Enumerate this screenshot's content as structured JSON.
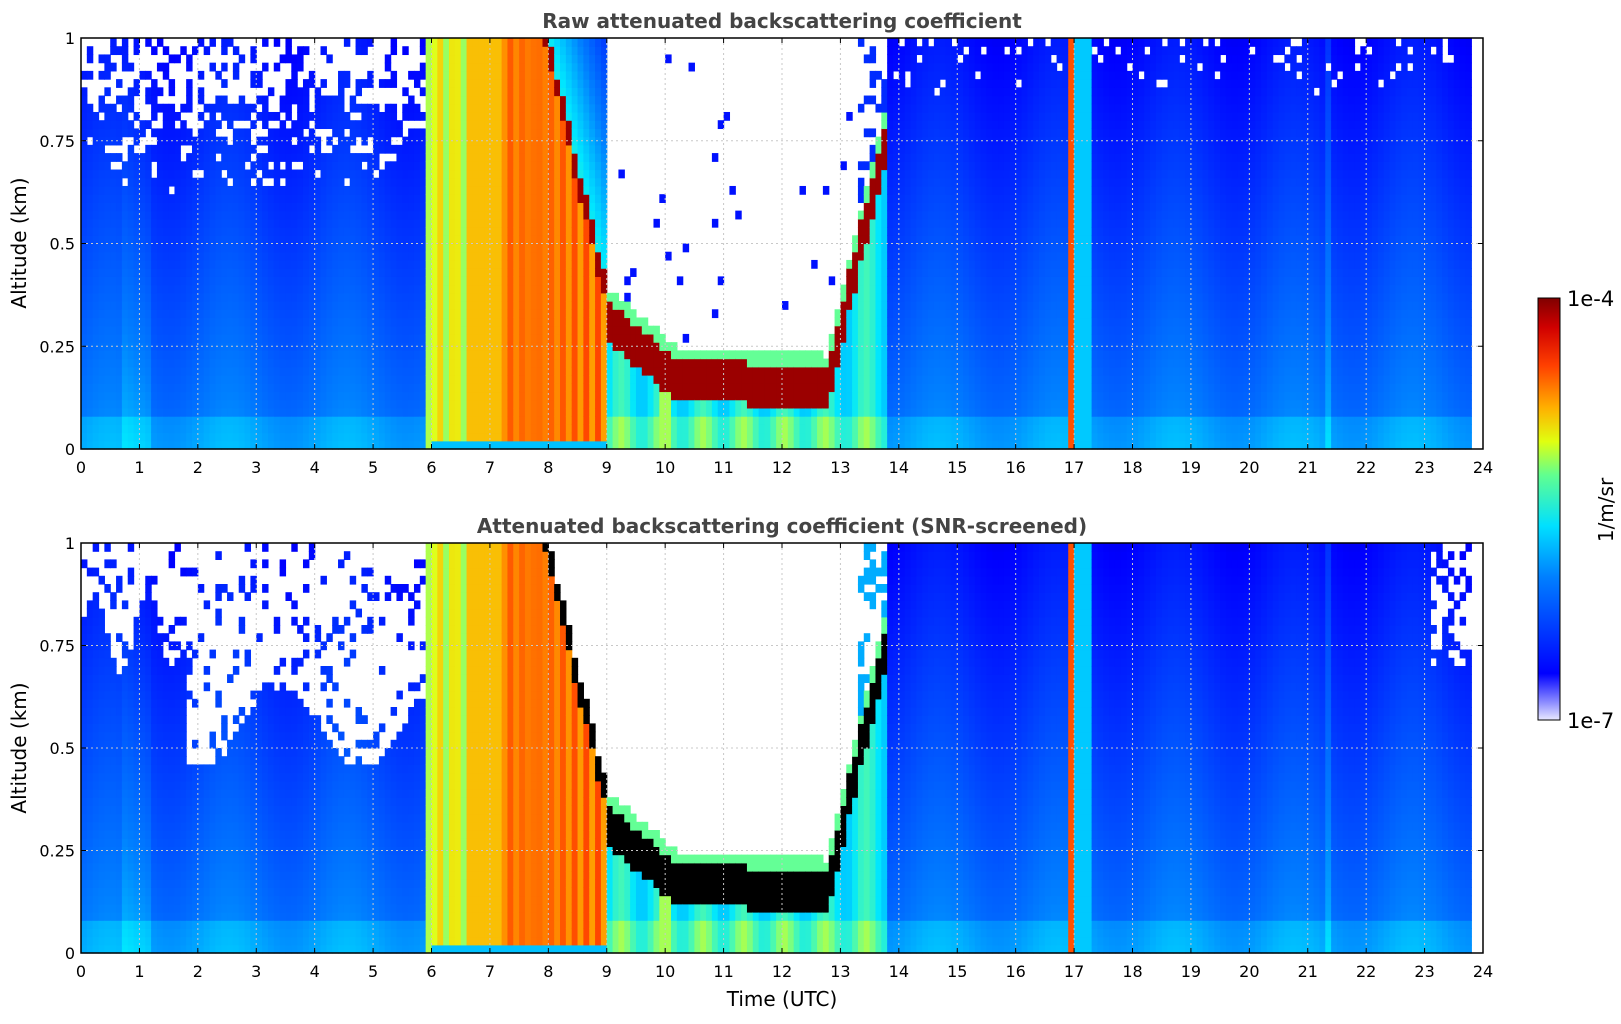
{
  "chart_data": [
    {
      "type": "heatmap",
      "title": "Raw attenuated backscattering coefficient",
      "xlabel": "",
      "ylabel": "Altitude (km)",
      "xlim": [
        0,
        24
      ],
      "ylim": [
        0,
        1
      ],
      "x_ticks": [
        "0",
        "1",
        "2",
        "3",
        "4",
        "5",
        "6",
        "7",
        "8",
        "9",
        "10",
        "11",
        "12",
        "13",
        "14",
        "15",
        "16",
        "17",
        "18",
        "19",
        "20",
        "21",
        "22",
        "23",
        "24"
      ],
      "y_ticks": [
        "0",
        "0.25",
        "0.5",
        "0.75",
        "1"
      ],
      "grid": true,
      "screened": false
    },
    {
      "type": "heatmap",
      "title": "Attenuated backscattering coefficient (SNR-screened)",
      "xlabel": "Time (UTC)",
      "ylabel": "Altitude (km)",
      "xlim": [
        0,
        24
      ],
      "ylim": [
        0,
        1
      ],
      "x_ticks": [
        "0",
        "1",
        "2",
        "3",
        "4",
        "5",
        "6",
        "7",
        "8",
        "9",
        "10",
        "11",
        "12",
        "13",
        "14",
        "15",
        "16",
        "17",
        "18",
        "19",
        "20",
        "21",
        "22",
        "23",
        "24"
      ],
      "y_ticks": [
        "0",
        "0.25",
        "0.5",
        "0.75",
        "1"
      ],
      "grid": true,
      "screened": true
    }
  ],
  "colorbar": {
    "label": "1/m/sr",
    "min_label": "1e-7",
    "max_label": "1e-4",
    "scale": "log",
    "range": [
      1e-07,
      0.0001
    ]
  }
}
